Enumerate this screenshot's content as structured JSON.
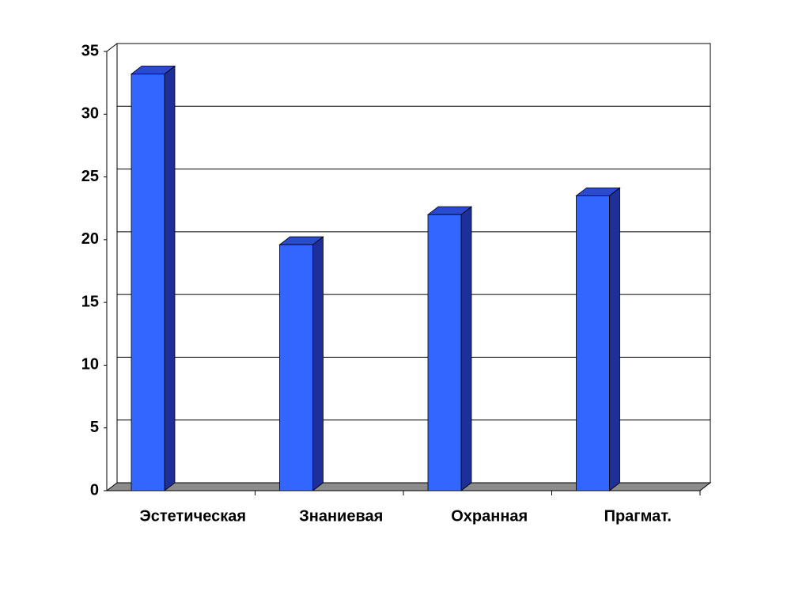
{
  "chart_data": {
    "type": "bar3d",
    "categories": [
      "Эстетическая",
      "Знаниевая",
      "Охранная",
      "Прагмат."
    ],
    "values": [
      33.2,
      19.6,
      22,
      23.5
    ],
    "color": "#3366ff",
    "ylim": [
      0,
      35
    ],
    "yticks": [
      0,
      5,
      10,
      15,
      20,
      25,
      30,
      35
    ],
    "grid": true
  }
}
